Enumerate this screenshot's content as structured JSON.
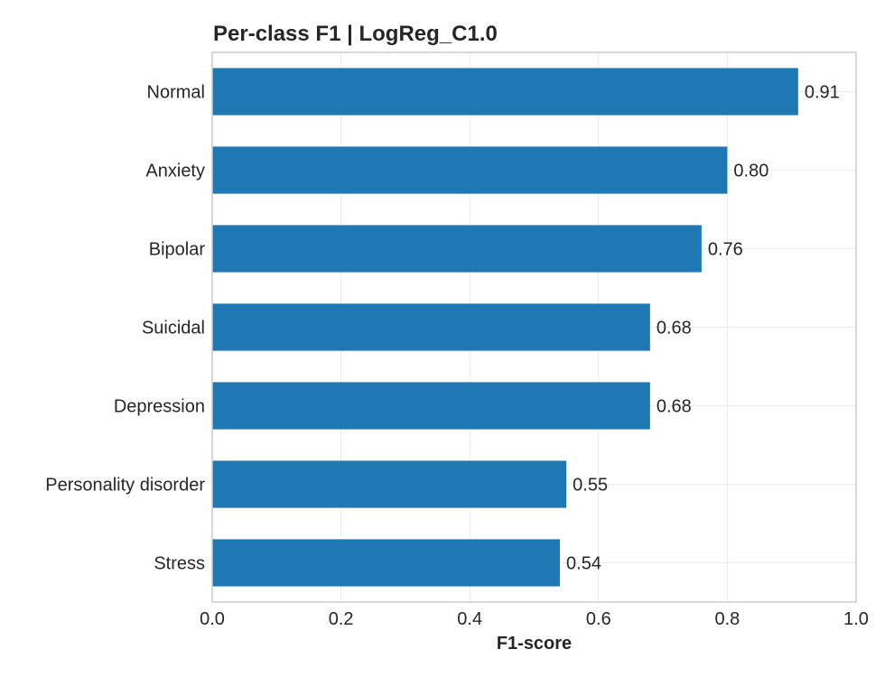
{
  "chart_data": {
    "type": "bar",
    "orientation": "horizontal",
    "title": "Per-class F1 | LogReg_C1.0",
    "xlabel": "F1-score",
    "ylabel": "",
    "xlim": [
      0.0,
      1.0
    ],
    "xticks": [
      "0.0",
      "0.2",
      "0.4",
      "0.6",
      "0.8",
      "1.0"
    ],
    "categories": [
      "Normal",
      "Anxiety",
      "Bipolar",
      "Suicidal",
      "Depression",
      "Personality disorder",
      "Stress"
    ],
    "values": [
      0.91,
      0.8,
      0.76,
      0.68,
      0.68,
      0.55,
      0.54
    ],
    "value_labels": [
      "0.91",
      "0.80",
      "0.76",
      "0.68",
      "0.68",
      "0.55",
      "0.54"
    ],
    "bar_color": "#1f77b4",
    "grid": true,
    "legend": "none"
  }
}
